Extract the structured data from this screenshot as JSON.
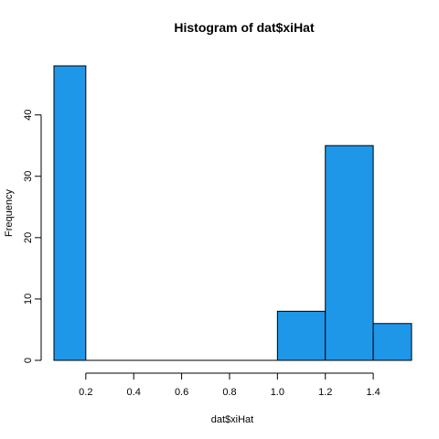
{
  "chart_data": {
    "type": "bar",
    "title": "Histogram of dat$xiHat",
    "xlabel": "dat$xiHat",
    "ylabel": "Frequency",
    "bar_color": "#1f97e8",
    "bins": [
      {
        "start": 0.067,
        "end": 0.2,
        "count": 48
      },
      {
        "start": 0.2,
        "end": 1.0,
        "count": 0
      },
      {
        "start": 1.0,
        "end": 1.2,
        "count": 8
      },
      {
        "start": 1.2,
        "end": 1.4,
        "count": 35
      },
      {
        "start": 1.4,
        "end": 1.56,
        "count": 6
      }
    ],
    "xlim": [
      0.067,
      1.56
    ],
    "ylim": [
      0,
      48
    ],
    "x_ticks": [
      {
        "value": 0.2,
        "label": "0.2"
      },
      {
        "value": 0.4,
        "label": "0.4"
      },
      {
        "value": 0.6,
        "label": "0.6"
      },
      {
        "value": 0.8,
        "label": "0.8"
      },
      {
        "value": 1.0,
        "label": "1.0"
      },
      {
        "value": 1.2,
        "label": "1.2"
      },
      {
        "value": 1.4,
        "label": "1.4"
      }
    ],
    "y_ticks": [
      {
        "value": 0,
        "label": "0"
      },
      {
        "value": 10,
        "label": "10"
      },
      {
        "value": 20,
        "label": "20"
      },
      {
        "value": 30,
        "label": "30"
      },
      {
        "value": 40,
        "label": "40"
      }
    ],
    "grid": false,
    "legend": "none"
  }
}
